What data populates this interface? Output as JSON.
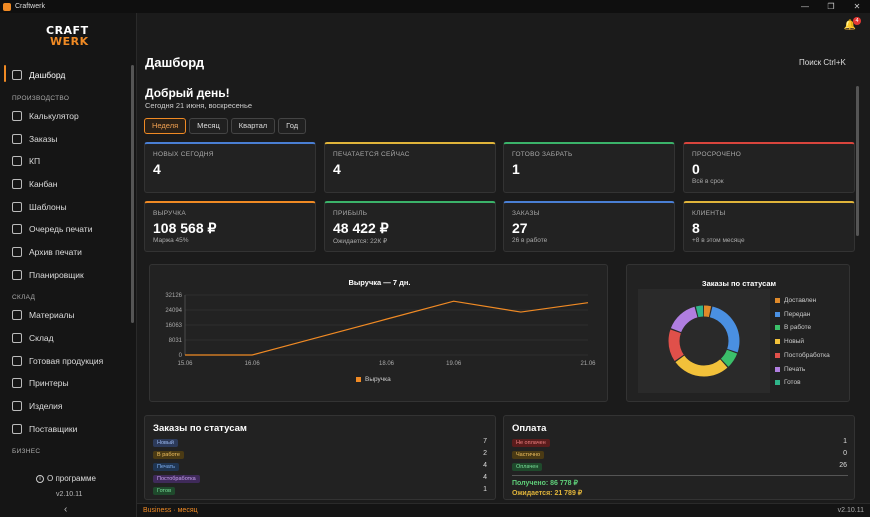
{
  "app": {
    "title": "Craftwerk",
    "logo_line1": "CRAFT",
    "logo_line2": "WERK"
  },
  "window_controls": [
    "—",
    "❐",
    "✕"
  ],
  "notifications": {
    "count": "4"
  },
  "sidebar": {
    "items": [
      {
        "label": "Дашборд",
        "icon": "dashboard-icon"
      },
      {
        "label": "Калькулятор",
        "icon": "calculator-icon"
      },
      {
        "label": "Заказы",
        "icon": "orders-icon"
      },
      {
        "label": "КП",
        "icon": "quote-icon"
      },
      {
        "label": "Канбан",
        "icon": "kanban-icon"
      },
      {
        "label": "Шаблоны",
        "icon": "templates-icon"
      },
      {
        "label": "Очередь печати",
        "icon": "print-queue-icon"
      },
      {
        "label": "Архив печати",
        "icon": "print-archive-icon"
      },
      {
        "label": "Планировщик",
        "icon": "calendar-icon"
      },
      {
        "label": "Материалы",
        "icon": "materials-icon"
      },
      {
        "label": "Склад",
        "icon": "warehouse-icon"
      },
      {
        "label": "Готовая продукция",
        "icon": "finished-goods-icon"
      },
      {
        "label": "Принтеры",
        "icon": "printer-icon"
      },
      {
        "label": "Изделия",
        "icon": "products-icon"
      },
      {
        "label": "Поставщики",
        "icon": "suppliers-icon"
      }
    ],
    "sections": [
      "ПРОИЗВОДСТВО",
      "СКЛАД",
      "БИЗНЕС"
    ],
    "about": "О программе",
    "version": "v2.10.11",
    "collapse": "‹"
  },
  "header": {
    "title": "Дашборд",
    "search": "Поиск  Ctrl+K"
  },
  "greeting": {
    "title": "Добрый день!",
    "date": "Сегодня 21 июня, воскресенье"
  },
  "tabs": [
    "Неделя",
    "Месяц",
    "Квартал",
    "Год"
  ],
  "cards": [
    {
      "label": "НОВЫХ СЕГОДНЯ",
      "value": "4",
      "sub": "",
      "color": "#4a7fd4"
    },
    {
      "label": "ПЕЧАТАЕТСЯ СЕЙЧАС",
      "value": "4",
      "sub": "",
      "color": "#e0b43a"
    },
    {
      "label": "ГОТОВО ЗАБРАТЬ",
      "value": "1",
      "sub": "",
      "color": "#3bb36a"
    },
    {
      "label": "ПРОСРОЧЕНО",
      "value": "0",
      "sub": "Всё в срок",
      "color": "#d9453d"
    },
    {
      "label": "ВЫРУЧКА",
      "value": "108 568 ₽",
      "sub": "Маржа 45%",
      "color": "#f08a24"
    },
    {
      "label": "ПРИБЫЛЬ",
      "value": "48 422 ₽",
      "sub": "Ожидается: 22К ₽",
      "color": "#3bb36a"
    },
    {
      "label": "ЗАКАЗЫ",
      "value": "27",
      "sub": "26 в работе",
      "color": "#4a7fd4"
    },
    {
      "label": "КЛИЕНТЫ",
      "value": "8",
      "sub": "+8 в этом месяце",
      "color": "#e0b43a"
    }
  ],
  "chart_data": [
    {
      "type": "line",
      "title": "Выручка — 7 дн.",
      "x": [
        "15.06",
        "16.06",
        "17.06",
        "18.06",
        "19.06",
        "20.06",
        "21.06"
      ],
      "x_tick_labels": [
        "15.06",
        "16.06",
        "18.06",
        "19.06",
        "21.06"
      ],
      "y_ticks": [
        "32126",
        "24094",
        "16063",
        "8031",
        "0"
      ],
      "ylim": [
        0,
        32126
      ],
      "series": [
        {
          "name": "Выручка",
          "values": [
            0,
            0,
            9600,
            19200,
            28800,
            23000,
            28000
          ],
          "color": "#f08a24"
        }
      ]
    },
    {
      "type": "pie",
      "title": "Заказы по статусам",
      "legend_position": "right",
      "series": [
        {
          "name": "Доставлен",
          "value": 1,
          "color": "#e08a2a"
        },
        {
          "name": "Передан",
          "value": 7,
          "color": "#4a90e2"
        },
        {
          "name": "В работе",
          "value": 2,
          "color": "#3bbf6a"
        },
        {
          "name": "Новый",
          "value": 7,
          "color": "#f2c13a"
        },
        {
          "name": "Постобработка",
          "value": 4,
          "color": "#e0504a"
        },
        {
          "name": "Печать",
          "value": 4,
          "color": "#b07ee0"
        },
        {
          "name": "Готов",
          "value": 1,
          "color": "#2fb58a"
        }
      ]
    }
  ],
  "orders_status": {
    "title": "Заказы по статусам",
    "rows": [
      {
        "label": "Новый",
        "count": "7",
        "bg": "#2c3a5a",
        "fg": "#9ab8f0"
      },
      {
        "label": "В работе",
        "count": "2",
        "bg": "#4a3a14",
        "fg": "#f0c060"
      },
      {
        "label": "Печать",
        "count": "4",
        "bg": "#1f3552",
        "fg": "#7fb0f0"
      },
      {
        "label": "Постобработка",
        "count": "4",
        "bg": "#3f2a5a",
        "fg": "#c8a0f0"
      },
      {
        "label": "Готов",
        "count": "1",
        "bg": "#1f4a2c",
        "fg": "#7ae09a"
      }
    ]
  },
  "payment": {
    "title": "Оплата",
    "rows": [
      {
        "label": "Не оплачен",
        "count": "1",
        "bg": "#5a1c1c",
        "fg": "#f08080"
      },
      {
        "label": "Частично",
        "count": "0",
        "bg": "#4a3a14",
        "fg": "#f0c060"
      },
      {
        "label": "Оплачен",
        "count": "26",
        "bg": "#1f4a2c",
        "fg": "#7ae09a"
      }
    ],
    "received": "Получено: 86 778 ₽",
    "expected": "Ожидается: 21 789 ₽"
  },
  "statusbar": {
    "left": "Business · месяц",
    "right": "v2.10.11"
  }
}
